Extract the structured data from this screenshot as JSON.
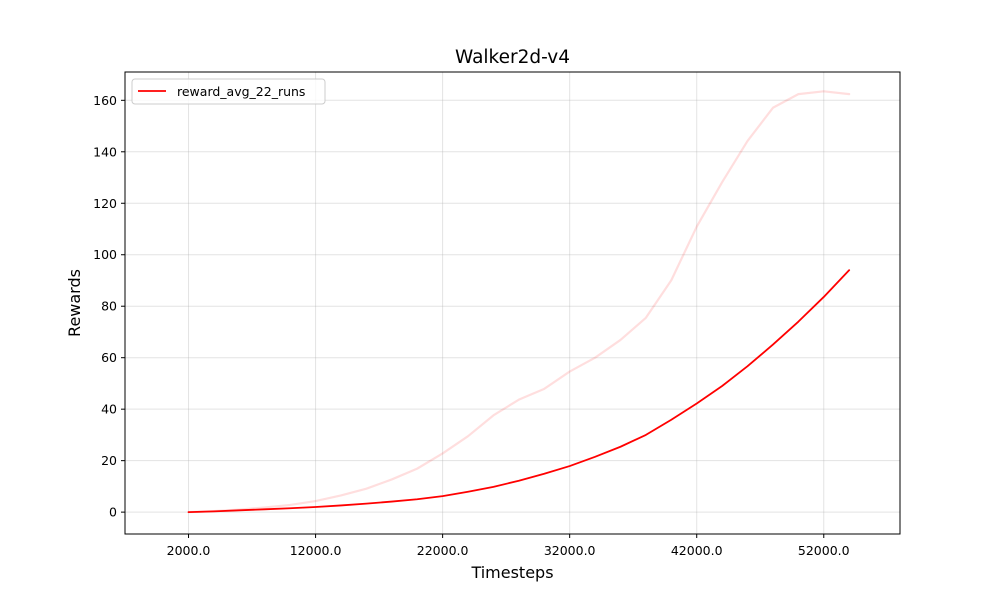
{
  "chart_data": {
    "type": "line",
    "title": "Walker2d-v4",
    "xlabel": "Timesteps",
    "ylabel": "Rewards",
    "xlim": [
      -3000,
      58000
    ],
    "ylim": [
      -8.5,
      171
    ],
    "x_ticks": [
      2000,
      12000,
      22000,
      32000,
      42000,
      52000
    ],
    "x_tick_labels": [
      "2000.0",
      "12000.0",
      "22000.0",
      "32000.0",
      "42000.0",
      "52000.0"
    ],
    "y_ticks": [
      0,
      20,
      40,
      60,
      80,
      100,
      120,
      140,
      160
    ],
    "y_tick_labels": [
      "0",
      "20",
      "40",
      "60",
      "80",
      "100",
      "120",
      "140",
      "160"
    ],
    "grid": true,
    "legend_position": "upper-left",
    "series": [
      {
        "name": "reward_avg_22_runs",
        "color": "#ff0000",
        "opacity": 1.0,
        "x": [
          2000,
          4000,
          6000,
          8000,
          10000,
          12000,
          14000,
          16000,
          18000,
          20000,
          22000,
          24000,
          26000,
          28000,
          30000,
          32000,
          34000,
          36000,
          38000,
          40000,
          42000,
          44000,
          46000,
          48000,
          50000,
          52000,
          54000
        ],
        "values": [
          0.0,
          0.3,
          0.7,
          1.1,
          1.5,
          2.0,
          2.6,
          3.3,
          4.1,
          5.0,
          6.2,
          7.9,
          9.8,
          12.2,
          14.9,
          17.9,
          21.5,
          25.4,
          30.0,
          35.9,
          42.2,
          49.0,
          56.7,
          65.1,
          74.0,
          83.6,
          94.0
        ]
      },
      {
        "name": "",
        "color": "#ff0000",
        "opacity": 0.13,
        "x": [
          2000,
          4000,
          6000,
          8000,
          10000,
          12000,
          14000,
          16000,
          18000,
          20000,
          22000,
          24000,
          26000,
          28000,
          30000,
          32000,
          34000,
          36000,
          38000,
          40000,
          42000,
          44000,
          46000,
          48000,
          50000,
          52000,
          54000
        ],
        "values": [
          0.0,
          0.4,
          1.0,
          1.8,
          2.8,
          4.3,
          6.5,
          9.1,
          12.7,
          16.9,
          22.8,
          29.5,
          37.6,
          43.7,
          47.9,
          54.6,
          60.0,
          66.9,
          75.5,
          90.1,
          110.9,
          128.2,
          144.2,
          157.1,
          162.4,
          163.5,
          162.4
        ]
      }
    ]
  }
}
